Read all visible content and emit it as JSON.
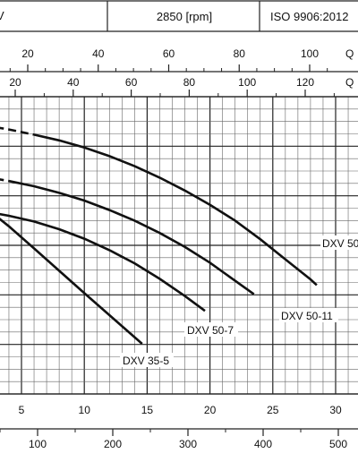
{
  "header": {
    "left_label": "V",
    "speed_label": "2850 [rpm]",
    "standard_label": "ISO 9906:2012"
  },
  "chart_data": {
    "type": "line",
    "title": "",
    "grid": true,
    "axes": {
      "top1": {
        "label": "Q",
        "ticks": [
          20,
          40,
          60,
          80,
          100
        ],
        "range": [
          0,
          108
        ]
      },
      "top2": {
        "label": "Q",
        "ticks": [
          20,
          40,
          60,
          80,
          100,
          120
        ],
        "range": [
          0,
          130
        ]
      },
      "bottom1": {
        "label": "",
        "ticks": [
          5,
          10,
          15,
          20,
          25,
          30
        ],
        "range": [
          0,
          32.5
        ]
      },
      "bottom2": {
        "label": "",
        "ticks": [
          100,
          200,
          300,
          400,
          500
        ],
        "range": [
          0,
          540
        ]
      },
      "x_primary": "bottom1",
      "x_range": [
        0,
        28.5
      ],
      "y_range": [
        0,
        100
      ]
    },
    "series": [
      {
        "name": "DXV 50",
        "dashed_points": [
          [
            0,
            95
          ],
          [
            2,
            93.8
          ],
          [
            4,
            92.3
          ],
          [
            6,
            90.5
          ]
        ],
        "points": [
          [
            6,
            90.5
          ],
          [
            8,
            88.5
          ],
          [
            10,
            86
          ],
          [
            12,
            83
          ],
          [
            14,
            79.5
          ],
          [
            16,
            75.5
          ],
          [
            18,
            71
          ],
          [
            20,
            66
          ],
          [
            22,
            60.5
          ],
          [
            24,
            54
          ],
          [
            26,
            47
          ],
          [
            28,
            40
          ],
          [
            28.5,
            38
          ]
        ]
      },
      {
        "name": "DXV 50-11",
        "dashed_points": [
          [
            0,
            77
          ],
          [
            2,
            75.8
          ],
          [
            4,
            74.3
          ]
        ],
        "points": [
          [
            4,
            74.3
          ],
          [
            6,
            72.5
          ],
          [
            8,
            70.2
          ],
          [
            10,
            67.5
          ],
          [
            12,
            64.2
          ],
          [
            14,
            60.5
          ],
          [
            16,
            56.2
          ],
          [
            18,
            51.3
          ],
          [
            20,
            45.8
          ],
          [
            22,
            39.5
          ],
          [
            23.5,
            34.8
          ]
        ]
      },
      {
        "name": "DXV 50-7",
        "dashed_points": [
          [
            0,
            65
          ],
          [
            1,
            64.6
          ],
          [
            2,
            63.8
          ]
        ],
        "points": [
          [
            2,
            63.8
          ],
          [
            4,
            62.2
          ],
          [
            6,
            60.2
          ],
          [
            8,
            57.5
          ],
          [
            10,
            54.2
          ],
          [
            12,
            50.2
          ],
          [
            14,
            45.6
          ],
          [
            16,
            40.2
          ],
          [
            18,
            34.2
          ],
          [
            19.6,
            29
          ]
        ]
      },
      {
        "name": "DXV 35-5",
        "dashed_points": [
          [
            0,
            69
          ],
          [
            1,
            67.5
          ],
          [
            2,
            65.5
          ]
        ],
        "points": [
          [
            2,
            65.5
          ],
          [
            4,
            58.5
          ],
          [
            6,
            50.8
          ],
          [
            8,
            43
          ],
          [
            10,
            35.2
          ],
          [
            12,
            27.5
          ],
          [
            14,
            19.8
          ],
          [
            14.6,
            17.5
          ]
        ]
      }
    ],
    "label_positions_note": ""
  }
}
